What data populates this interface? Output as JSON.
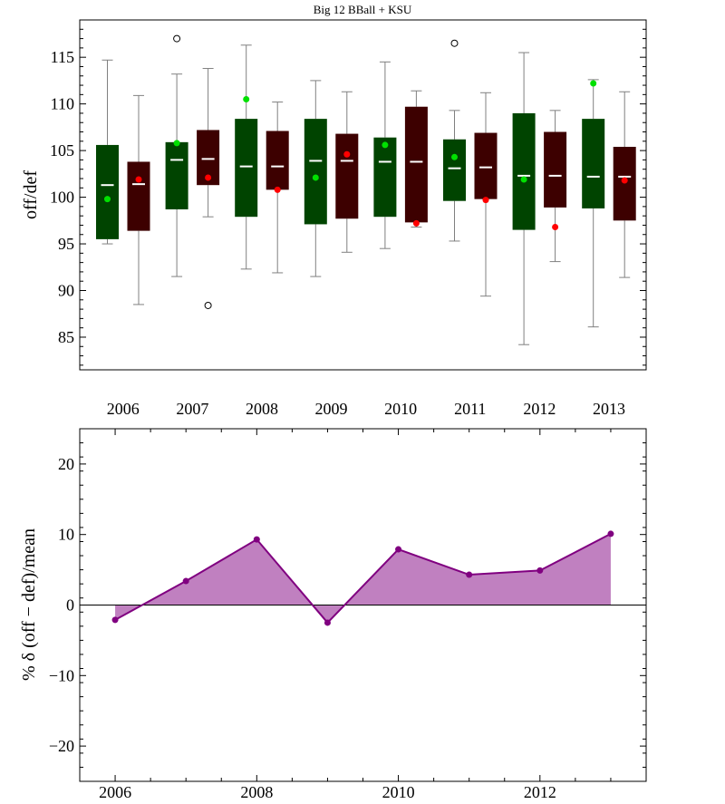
{
  "chart_data": [
    {
      "type": "box",
      "title": "Big 12 BBall + KSU",
      "ylabel": "off/def",
      "xlabel": "",
      "ylim": [
        81.5,
        119
      ],
      "yticks": [
        85,
        90,
        95,
        100,
        105,
        110,
        115
      ],
      "categories": [
        "2006",
        "2007",
        "2008",
        "2009",
        "2010",
        "2011",
        "2012",
        "2013"
      ],
      "colors": {
        "off": "#004400",
        "def": "#3d0000",
        "off_point": "#00e000",
        "def_point": "#ff0000",
        "median": "#ffffff",
        "whisker": "#808080"
      },
      "series": [
        {
          "boxes": [
            {
              "min": 95.0,
              "q1": 95.5,
              "median": 101.3,
              "q3": 105.6,
              "max": 114.7,
              "outliers": []
            },
            {
              "min": 91.5,
              "q1": 98.7,
              "median": 104.0,
              "q3": 105.9,
              "max": 113.2,
              "outliers": [
                117.0
              ]
            },
            {
              "min": 92.3,
              "q1": 97.9,
              "median": 103.3,
              "q3": 108.4,
              "max": 116.3,
              "outliers": []
            },
            {
              "min": 91.5,
              "q1": 97.1,
              "median": 103.9,
              "q3": 108.4,
              "max": 112.5,
              "outliers": []
            },
            {
              "min": 94.5,
              "q1": 97.9,
              "median": 103.8,
              "q3": 106.4,
              "max": 114.5,
              "outliers": []
            },
            {
              "min": 95.3,
              "q1": 99.6,
              "median": 103.1,
              "q3": 106.2,
              "max": 109.3,
              "outliers": [
                116.5
              ]
            },
            {
              "min": 84.2,
              "q1": 96.5,
              "median": 102.3,
              "q3": 109.0,
              "max": 115.5,
              "outliers": []
            },
            {
              "min": 86.1,
              "q1": 98.8,
              "median": 102.2,
              "q3": 108.4,
              "max": 112.6,
              "outliers": []
            }
          ],
          "points": [
            99.8,
            105.8,
            110.5,
            102.1,
            105.6,
            104.3,
            101.9,
            112.2
          ]
        },
        {
          "boxes": [
            {
              "min": 88.5,
              "q1": 96.4,
              "median": 101.4,
              "q3": 103.8,
              "max": 110.9,
              "outliers": []
            },
            {
              "min": 97.9,
              "q1": 101.3,
              "median": 104.1,
              "q3": 107.2,
              "max": 113.8,
              "outliers": [
                88.4
              ]
            },
            {
              "min": 91.9,
              "q1": 100.8,
              "median": 103.3,
              "q3": 107.1,
              "max": 110.2,
              "outliers": []
            },
            {
              "min": 94.1,
              "q1": 97.7,
              "median": 103.9,
              "q3": 106.8,
              "max": 111.3,
              "outliers": []
            },
            {
              "min": 96.8,
              "q1": 97.3,
              "median": 103.8,
              "q3": 109.7,
              "max": 111.4,
              "outliers": []
            },
            {
              "min": 89.4,
              "q1": 99.8,
              "median": 103.2,
              "q3": 106.9,
              "max": 111.2,
              "outliers": []
            },
            {
              "min": 93.1,
              "q1": 98.9,
              "median": 102.3,
              "q3": 107.0,
              "max": 109.3,
              "outliers": []
            },
            {
              "min": 91.4,
              "q1": 97.5,
              "median": 102.2,
              "q3": 105.4,
              "max": 111.3,
              "outliers": []
            }
          ],
          "points": [
            101.9,
            102.1,
            100.8,
            104.6,
            97.2,
            99.7,
            96.8,
            101.8
          ]
        }
      ]
    },
    {
      "type": "area",
      "title": "",
      "ylabel": "% δ (off − def)/mean",
      "xlabel": "",
      "xlim": [
        2005.5,
        2013.5
      ],
      "ylim": [
        -25,
        25
      ],
      "xticks": [
        2006,
        2008,
        2010,
        2012
      ],
      "yticks": [
        -20,
        -10,
        0,
        10,
        20
      ],
      "color": "#800080",
      "fill": "#c080c0",
      "x": [
        2006,
        2007,
        2008,
        2009,
        2010,
        2011,
        2012,
        2013
      ],
      "y": [
        -2.1,
        3.4,
        9.3,
        -2.5,
        7.9,
        4.3,
        4.9,
        10.1
      ]
    }
  ]
}
